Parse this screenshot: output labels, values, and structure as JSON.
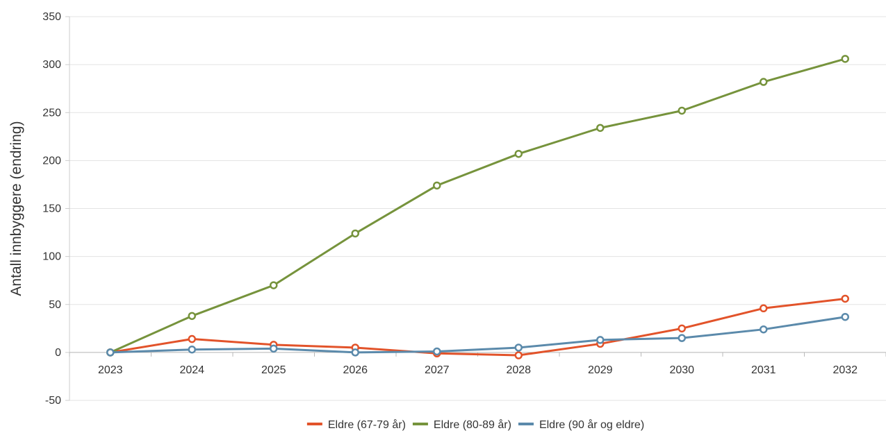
{
  "chart_data": {
    "type": "line",
    "title": "",
    "xlabel": "",
    "ylabel": "Antall innbyggere (endring)",
    "x": [
      "2023",
      "2024",
      "2025",
      "2026",
      "2027",
      "2028",
      "2029",
      "2030",
      "2031",
      "2032"
    ],
    "ylim": [
      -50,
      350
    ],
    "yticks": [
      -50,
      0,
      50,
      100,
      150,
      200,
      250,
      300,
      350
    ],
    "grid": true,
    "legend_position": "bottom",
    "series": [
      {
        "name": "Eldre (67-79 år)",
        "color": "#e2532a",
        "values": [
          0,
          14,
          8,
          5,
          -1,
          -3,
          9,
          25,
          46,
          56
        ]
      },
      {
        "name": "Eldre (80-89 år)",
        "color": "#76933c",
        "values": [
          0,
          38,
          70,
          124,
          174,
          207,
          234,
          252,
          282,
          306
        ]
      },
      {
        "name": "Eldre (90 år og eldre)",
        "color": "#5b8aab",
        "values": [
          0,
          3,
          4,
          0,
          1,
          5,
          13,
          15,
          24,
          37
        ]
      }
    ]
  }
}
